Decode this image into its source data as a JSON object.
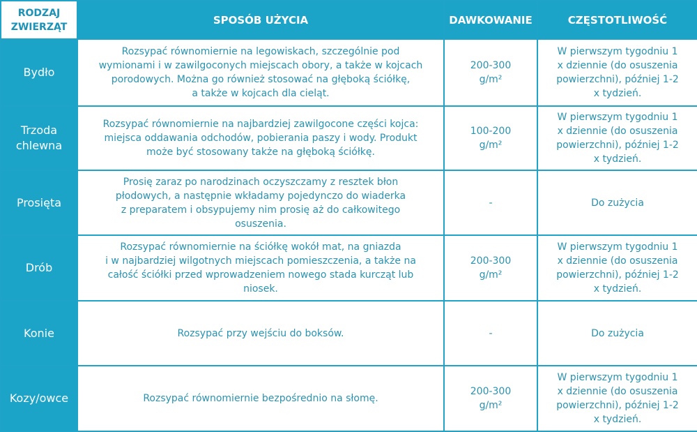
{
  "header": {
    "animal": "RODZAJ\nZWIERZĄT",
    "usage": "SPOSÓB UŻYCIA",
    "dose": "DAWKOWANIE",
    "frequency": "CZĘSTOTLIWOŚĆ"
  },
  "colors": {
    "accent": "#1ba3c8",
    "text": "#2a93b0"
  },
  "rows": [
    {
      "animal": "Bydło",
      "usage": "Rozsypać równomiernie  na legowiskach, szczególnie pod\nwymionami i w zawilgoconych miejscach obory, a także w kojcach\nporodowych. Można go również stosować na głęboką ściółkę,\na także w kojcach dla cieląt.",
      "dose": "200-300\ng/m²",
      "frequency": "W pierwszym tygodniu 1\nx dziennie (do osuszenia\npowierzchni), później 1-2\nx tydzień."
    },
    {
      "animal": "Trzoda\nchlewna",
      "usage": "Rozsypać równomiernie na najbardziej zawilgocone części kojca:\nmiejsca oddawania odchodów, pobierania paszy i wody. Produkt\nmoże być stosowany także na głęboką ściółkę.",
      "dose": "100-200\ng/m²",
      "frequency": "W pierwszym tygodniu 1\nx dziennie (do osuszenia\npowierzchni), później 1-2\nx tydzień."
    },
    {
      "animal": "Prosięta",
      "usage": "Prosię zaraz po narodzinach oczyszczamy z resztek błon\npłodowych, a następnie wkładamy pojedynczo do wiaderka\nz preparatem i obsypujemy nim prosię aż do całkowitego\nosuszenia.",
      "dose": "-",
      "frequency": "Do zużycia"
    },
    {
      "animal": "Drób",
      "usage": "Rozsypać równomiernie na ściółkę wokół mat, na gniazda\ni w najbardziej wilgotnych miejscach pomieszczenia, a także na\ncałość ściółki przed wprowadzeniem nowego stada kurcząt lub\nniosek.",
      "dose": "200-300\ng/m²",
      "frequency": "W pierwszym tygodniu 1\nx dziennie (do osuszenia\npowierzchni), później 1-2\nx tydzień."
    },
    {
      "animal": "Konie",
      "usage": "Rozsypać przy wejściu do boksów.",
      "dose": "-",
      "frequency": "Do zużycia"
    },
    {
      "animal": "Kozy/owce",
      "usage": "Rozsypać równomiernie bezpośrednio na słomę.",
      "dose": "200-300\ng/m²",
      "frequency": "W pierwszym tygodniu 1\nx dziennie (do osuszenia\npowierzchni), później 1-2\nx tydzień."
    }
  ]
}
